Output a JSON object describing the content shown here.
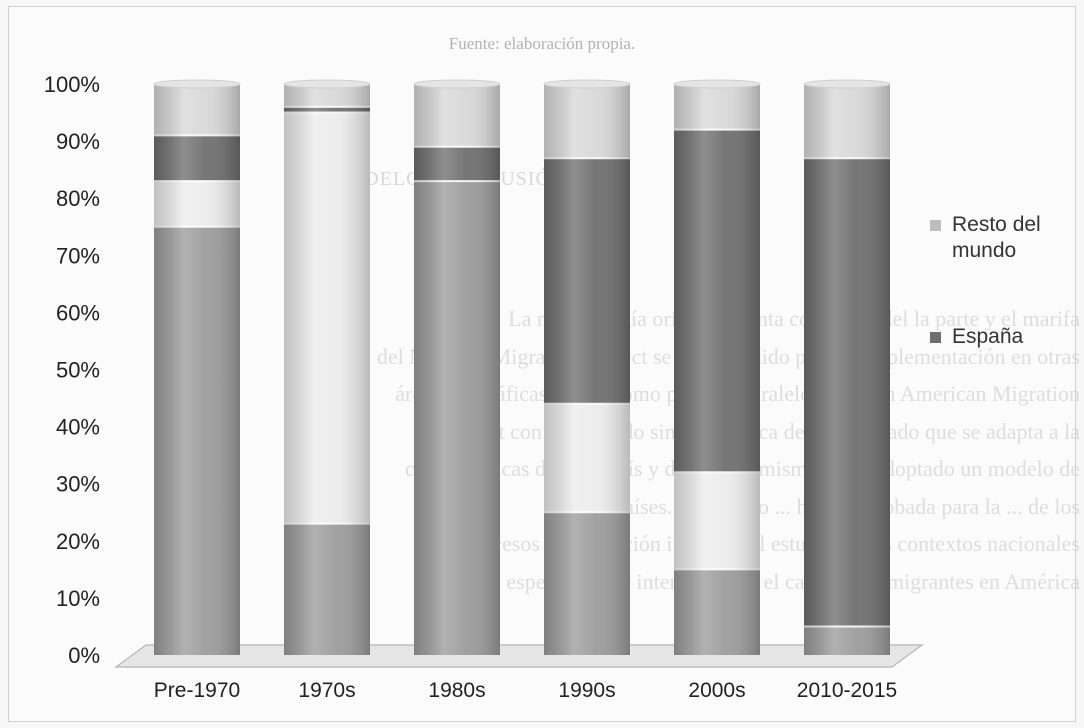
{
  "header": {
    "caption": "Fuente: elaboración propia.",
    "section_title": "MODELO CONCLUSIÓN"
  },
  "background_text": [
    "La metodología original cuenta con el lon del la parte y el marifa",
    "del Mexican Migration Project se ha extendido para su implementación en otras",
    "áreas geográficas, es así como proceso paralelo del Latin American Migration",
    "Project con un acuerdo similar a cerca del mismo lado que se adapta a la",
    "características de cada país y dentro del mismo se ha adoptado un modelo de",
    "en 11 países. El modelo ... ha sido probada para la ... de los",
    "los procesos de migración interna y el estudio en los contextos nacionales",
    "cual es especialmente interesante en el caso de los migrantes en América"
  ],
  "chart_data": {
    "type": "bar",
    "stacked": true,
    "percent": true,
    "categories": [
      "Pre-1970",
      "1970s",
      "1980s",
      "1990s",
      "2000s",
      "2010-2015"
    ],
    "series": [
      {
        "name": "",
        "color": "#9c9c9c",
        "values": [
          75,
          23,
          83,
          25,
          15,
          5
        ]
      },
      {
        "name": "",
        "color": "#ececec",
        "values": [
          8,
          72,
          0,
          19,
          17,
          0
        ]
      },
      {
        "name": "España",
        "color": "#6f6f6f",
        "values": [
          8,
          1,
          6,
          43,
          60,
          82
        ]
      },
      {
        "name": "Resto del mundo",
        "color": "#d8d8d8",
        "values": [
          9,
          4,
          11,
          13,
          8,
          13
        ]
      }
    ],
    "y_ticks": [
      "0%",
      "10%",
      "20%",
      "30%",
      "40%",
      "50%",
      "60%",
      "70%",
      "80%",
      "90%",
      "100%"
    ],
    "ylim": [
      0,
      100
    ],
    "legend_position": "right",
    "legend": [
      {
        "label": "Resto del mundo",
        "color": "#bdbdbd"
      },
      {
        "label": "España",
        "color": "#6f6f6f"
      }
    ],
    "grid": false
  }
}
